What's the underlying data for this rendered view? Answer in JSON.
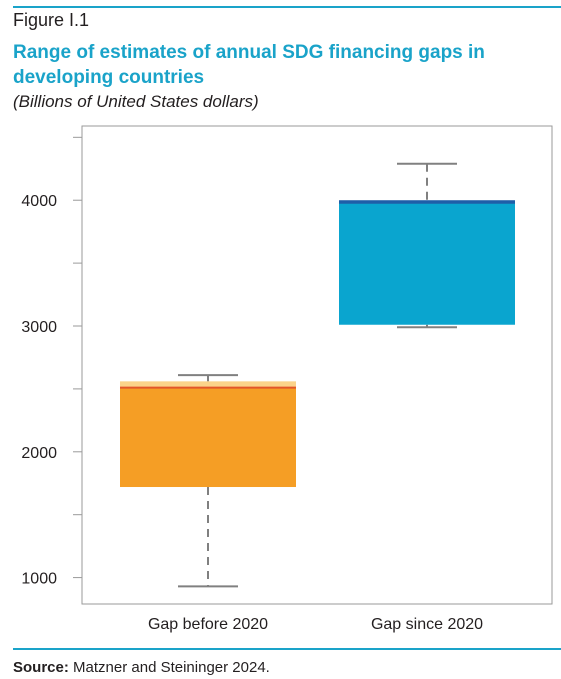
{
  "figure": {
    "label": "Figure I.1",
    "title": "Range of estimates of annual SDG financing gaps in developing countries",
    "subtitle": "(Billions of United States dollars)"
  },
  "source": {
    "label": "Source:",
    "text": "Matzner and Steininger 2024."
  },
  "colors": {
    "accent": "#1aa3c9",
    "box_before": "#f59e25",
    "box_before_cap": "#fbd38a",
    "median_before": "#e2562a",
    "box_since": "#0aa5cf",
    "median_since": "#1f5fa8",
    "whisker": "#808080",
    "axis": "#9a9a9a"
  },
  "chart_data": {
    "type": "box",
    "title": "Range of estimates of annual SDG financing gaps in developing countries",
    "subtitle": "(Billions of United States dollars)",
    "categories": [
      "Gap before 2020",
      "Gap since 2020"
    ],
    "yticks": [
      1000,
      2000,
      3000,
      4000
    ],
    "ytick_labels": [
      "1000",
      "2000",
      "3000",
      "4000"
    ],
    "ylim": [
      790,
      4590
    ],
    "minor_ticks": true,
    "grid": false,
    "boxes": [
      {
        "name": "Gap before 2020",
        "min": 930,
        "q1": 1720,
        "median": 2510,
        "q3": 2560,
        "max": 2610
      },
      {
        "name": "Gap since 2020",
        "min": 2990,
        "q1": 3010,
        "median": 3980,
        "q3": 4000,
        "max": 4290
      }
    ]
  }
}
